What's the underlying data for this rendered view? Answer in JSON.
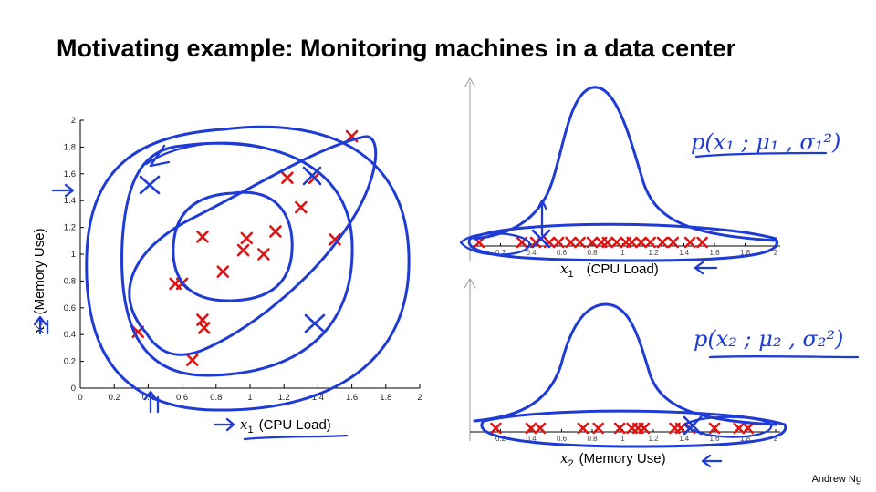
{
  "slide": {
    "title": "Motivating example: Monitoring machines in a data center",
    "credit": "Andrew Ng"
  },
  "colors": {
    "data_marks": "#e01313",
    "annotation_ink": "#1f3bd6",
    "axes": "#000000"
  },
  "chart_data": [
    {
      "type": "scatter",
      "title": "",
      "xlabel_var": "x",
      "xlabel_sub": "1",
      "xlabel_text": "(CPU Load)",
      "ylabel_var": "x",
      "ylabel_sub": "2",
      "ylabel_text": "(Memory Use)",
      "xlim": [
        0,
        2
      ],
      "ylim": [
        0,
        2
      ],
      "xticks": [
        "0",
        "0.2",
        "0.4",
        "0.6",
        "0.8",
        "1",
        "1.2",
        "1.4",
        "1.6",
        "1.8",
        "2"
      ],
      "yticks": [
        "0",
        "0.2",
        "0.4",
        "0.6",
        "0.8",
        "1",
        "1.2",
        "1.4",
        "1.6",
        "1.8",
        "2"
      ],
      "points": [
        {
          "x": 1.6,
          "y": 1.88
        },
        {
          "x": 1.22,
          "y": 1.57
        },
        {
          "x": 1.38,
          "y": 1.57
        },
        {
          "x": 1.3,
          "y": 1.35
        },
        {
          "x": 1.5,
          "y": 1.11
        },
        {
          "x": 1.15,
          "y": 1.17
        },
        {
          "x": 0.72,
          "y": 1.13
        },
        {
          "x": 0.98,
          "y": 1.12
        },
        {
          "x": 0.96,
          "y": 1.03
        },
        {
          "x": 1.08,
          "y": 1.0
        },
        {
          "x": 0.84,
          "y": 0.87
        },
        {
          "x": 0.56,
          "y": 0.78
        },
        {
          "x": 0.6,
          "y": 0.78
        },
        {
          "x": 0.72,
          "y": 0.51
        },
        {
          "x": 0.73,
          "y": 0.45
        },
        {
          "x": 0.34,
          "y": 0.42
        },
        {
          "x": 0.66,
          "y": 0.21
        }
      ],
      "grid": false
    },
    {
      "type": "scatter",
      "title": "",
      "annotation": "p(x₁ ; μ₁ , σ₁²)",
      "xlabel_var": "x",
      "xlabel_sub": "1",
      "xlabel_text": "(CPU Load)",
      "xlim": [
        0,
        2
      ],
      "xticks": [
        "0.2",
        "0.4",
        "0.6",
        "0.8",
        "1",
        "1.2",
        "1.4",
        "1.6",
        "1.8",
        "2"
      ],
      "points_x": [
        0.06,
        0.34,
        0.43,
        0.52,
        0.58,
        0.66,
        0.72,
        0.8,
        0.86,
        0.9,
        0.96,
        1.02,
        1.06,
        1.12,
        1.18,
        1.26,
        1.33,
        1.44,
        1.52
      ]
    },
    {
      "type": "scatter",
      "title": "",
      "annotation": "p(x₂ ; μ₂ , σ₂²)",
      "xlabel_var": "x",
      "xlabel_sub": "2",
      "xlabel_text": "(Memory Use)",
      "xlim": [
        0,
        2
      ],
      "xticks": [
        "0.2",
        "0.4",
        "0.6",
        "0.8",
        "1",
        "1.2",
        "1.4",
        "1.6",
        "1.8",
        "2"
      ],
      "points_x": [
        0.17,
        0.4,
        0.46,
        0.74,
        0.84,
        0.98,
        1.06,
        1.1,
        1.14,
        1.34,
        1.38,
        1.44,
        1.6,
        1.76,
        1.82
      ]
    }
  ]
}
